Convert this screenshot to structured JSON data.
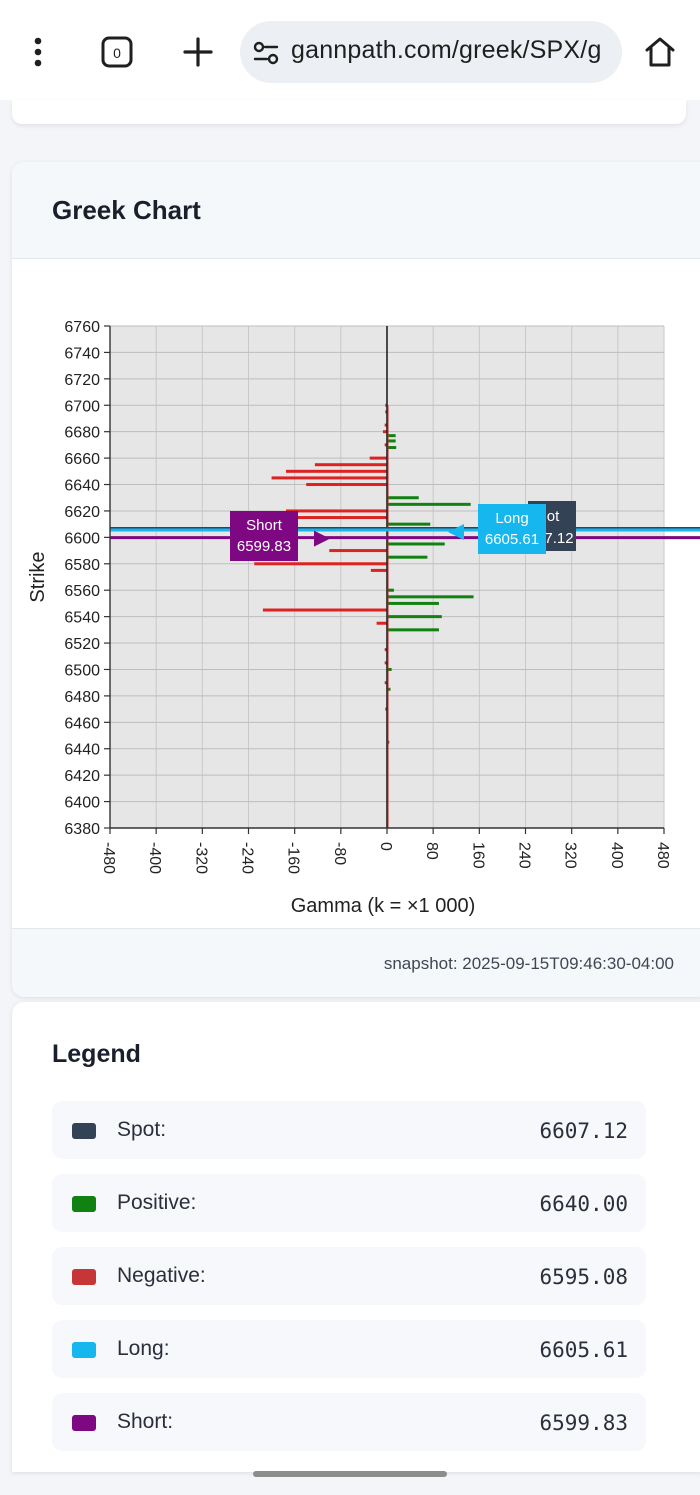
{
  "browser": {
    "url": "gannpath.com/greek/SPX/g"
  },
  "card": {
    "title": "Greek Chart",
    "snapshot": "snapshot: 2025-09-15T09:46:30-04:00"
  },
  "colors": {
    "spot": "#344256",
    "positive": "#118211",
    "negative": "#dd2222",
    "long": "#16b7ee",
    "short": "#7e0882"
  },
  "chart_data": {
    "type": "bar",
    "orientation": "horizontal",
    "xlabel": "Gamma (k = ×1 000)",
    "ylabel": "Strike",
    "xlim": [
      -480,
      480
    ],
    "ylim": [
      6380,
      6760
    ],
    "x_ticks": [
      -480,
      -400,
      -320,
      -240,
      -160,
      -80,
      0,
      80,
      160,
      240,
      320,
      400,
      480
    ],
    "y_ticks": [
      6760,
      6740,
      6720,
      6700,
      6680,
      6660,
      6640,
      6620,
      6600,
      6580,
      6560,
      6540,
      6520,
      6500,
      6480,
      6460,
      6440,
      6420,
      6400,
      6380
    ],
    "grid": true,
    "series": [
      {
        "name": "Positive",
        "points": [
          {
            "strike": 6677,
            "gamma": 15
          },
          {
            "strike": 6673,
            "gamma": 15
          },
          {
            "strike": 6668,
            "gamma": 16
          },
          {
            "strike": 6630,
            "gamma": 55
          },
          {
            "strike": 6625,
            "gamma": 145
          },
          {
            "strike": 6610,
            "gamma": 75
          },
          {
            "strike": 6595,
            "gamma": 100
          },
          {
            "strike": 6585,
            "gamma": 70
          },
          {
            "strike": 6560,
            "gamma": 12
          },
          {
            "strike": 6555,
            "gamma": 150
          },
          {
            "strike": 6550,
            "gamma": 90
          },
          {
            "strike": 6540,
            "gamma": 95
          },
          {
            "strike": 6530,
            "gamma": 90
          },
          {
            "strike": 6500,
            "gamma": 8
          },
          {
            "strike": 6485,
            "gamma": 6
          },
          {
            "strike": 6445,
            "gamma": 4
          }
        ]
      },
      {
        "name": "Negative",
        "points": [
          {
            "strike": 6700,
            "gamma": -3
          },
          {
            "strike": 6695,
            "gamma": -3
          },
          {
            "strike": 6685,
            "gamma": -4
          },
          {
            "strike": 6680,
            "gamma": -7
          },
          {
            "strike": 6670,
            "gamma": -4
          },
          {
            "strike": 6660,
            "gamma": -30
          },
          {
            "strike": 6655,
            "gamma": -125
          },
          {
            "strike": 6650,
            "gamma": -175
          },
          {
            "strike": 6645,
            "gamma": -200
          },
          {
            "strike": 6640,
            "gamma": -140
          },
          {
            "strike": 6620,
            "gamma": -175
          },
          {
            "strike": 6615,
            "gamma": -160
          },
          {
            "strike": 6590,
            "gamma": -100
          },
          {
            "strike": 6580,
            "gamma": -230
          },
          {
            "strike": 6575,
            "gamma": -28
          },
          {
            "strike": 6545,
            "gamma": -215
          },
          {
            "strike": 6535,
            "gamma": -18
          },
          {
            "strike": 6515,
            "gamma": -4
          },
          {
            "strike": 6505,
            "gamma": -4
          },
          {
            "strike": 6490,
            "gamma": -4
          },
          {
            "strike": 6470,
            "gamma": -3
          }
        ]
      }
    ],
    "levels": [
      {
        "name": "Spot",
        "value": 6607.12
      },
      {
        "name": "Long",
        "value": 6605.61
      },
      {
        "name": "Short",
        "value": 6599.83
      }
    ],
    "annotations": [
      {
        "name": "Spot",
        "label_lines": [
          "ot",
          "7.12"
        ]
      },
      {
        "name": "Long",
        "label_lines": [
          "Long",
          "6605.61"
        ]
      },
      {
        "name": "Short",
        "label_lines": [
          "Short",
          "6599.83"
        ]
      }
    ]
  },
  "legend": {
    "title": "Legend",
    "items": [
      {
        "label": "Spot:",
        "value": "6607.12",
        "color": "#344256"
      },
      {
        "label": "Positive:",
        "value": "6640.00",
        "color": "#118211"
      },
      {
        "label": "Negative:",
        "value": "6595.08",
        "color": "#c73636"
      },
      {
        "label": "Long:",
        "value": "6605.61",
        "color": "#16b7ee"
      },
      {
        "label": "Short:",
        "value": "6599.83",
        "color": "#7e0882"
      }
    ]
  },
  "icons": {
    "menu": "kebab-menu-icon",
    "tabs": "tabs-icon",
    "new_tab": "plus-icon",
    "site_settings": "tune-icon",
    "home": "home-icon"
  }
}
